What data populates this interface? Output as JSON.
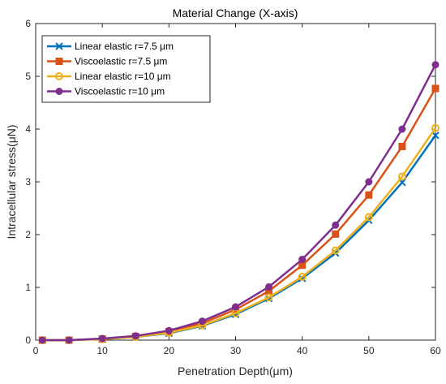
{
  "chart_data": {
    "type": "line",
    "title": "Material Change (X-axis)",
    "xlabel": "Penetration Depth(μm)",
    "ylabel": "Intracellular stress(μN)",
    "xlim": [
      0,
      60
    ],
    "ylim": [
      0,
      6
    ],
    "xticks": [
      0,
      10,
      20,
      30,
      40,
      50,
      60
    ],
    "yticks": [
      0,
      1,
      2,
      3,
      4,
      5,
      6
    ],
    "grid": false,
    "legend_position": "top-left",
    "x": [
      1,
      5,
      10,
      15,
      20,
      25,
      30,
      35,
      40,
      45,
      50,
      55,
      60
    ],
    "series": [
      {
        "name": "Linear elastic r=7.5 μm",
        "color": "#0072BD",
        "marker": "x",
        "values": [
          0.0,
          0.0,
          0.02,
          0.06,
          0.13,
          0.27,
          0.49,
          0.79,
          1.17,
          1.65,
          2.27,
          2.99,
          3.88
        ]
      },
      {
        "name": "Viscoelastic r=7.5 μm",
        "color": "#D95319",
        "marker": "square",
        "values": [
          0.0,
          0.0,
          0.02,
          0.07,
          0.16,
          0.32,
          0.58,
          0.93,
          1.42,
          2.01,
          2.75,
          3.67,
          4.77
        ]
      },
      {
        "name": "Linear elastic r=10 μm",
        "color": "#EDB120",
        "marker": "circle-open",
        "values": [
          0.0,
          0.0,
          0.02,
          0.06,
          0.14,
          0.28,
          0.51,
          0.81,
          1.2,
          1.7,
          2.33,
          3.1,
          4.02
        ]
      },
      {
        "name": "Viscoelastic r=10 μm",
        "color": "#7E2F8E",
        "marker": "circle-filled",
        "values": [
          0.0,
          0.0,
          0.03,
          0.08,
          0.18,
          0.36,
          0.63,
          1.01,
          1.53,
          2.18,
          3.0,
          4.0,
          5.22
        ]
      }
    ]
  }
}
